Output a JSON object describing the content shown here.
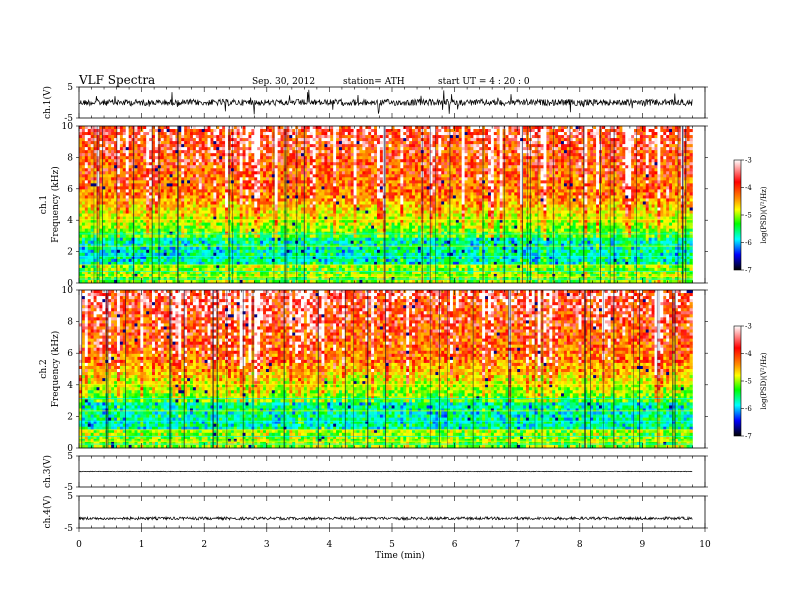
{
  "header": {
    "title": "VLF  Spectra",
    "date": "Sep. 30, 2012",
    "station": "station= ATH",
    "start": "start  UT  =   4  : 20 : 0"
  },
  "colorbar": {
    "label": "log(PSD)(V²/Hz)",
    "ticks": [
      "-3",
      "-4",
      "-5",
      "-6",
      "-7"
    ],
    "colors": [
      "#ffffff",
      "#ff0000",
      "#ff8c00",
      "#ffff00",
      "#00ff00",
      "#00ffff",
      "#0000ff",
      "#000000"
    ]
  },
  "chart_data": [
    {
      "type": "line",
      "panel": "ch1-waveform",
      "ylabel": "ch.1(V)",
      "yticks": [
        "5",
        "-5"
      ],
      "ylim": [
        -5,
        5
      ],
      "xlim": [
        0,
        10
      ],
      "baseline": 0,
      "noise": "high"
    },
    {
      "type": "heatmap",
      "panel": "ch1-spectrogram",
      "ylabel": "ch.1",
      "ylabel2": "Frequency  (kHz)",
      "yticks": [
        "10",
        "8",
        "6",
        "4",
        "2",
        "0"
      ],
      "ylim": [
        0,
        10
      ],
      "xlim": [
        0,
        9.8
      ],
      "colorscale_range": [
        -7,
        -3
      ]
    },
    {
      "type": "heatmap",
      "panel": "ch2-spectrogram",
      "ylabel": "ch.2",
      "ylabel2": "Frequency  (kHz)",
      "yticks": [
        "10",
        "8",
        "6",
        "4",
        "2",
        "0"
      ],
      "ylim": [
        0,
        10
      ],
      "xlim": [
        0,
        9.8
      ],
      "colorscale_range": [
        -7,
        -3
      ]
    },
    {
      "type": "line",
      "panel": "ch3-waveform",
      "ylabel": "ch.3(V)",
      "yticks": [
        "5",
        "-5"
      ],
      "ylim": [
        -5,
        5
      ],
      "xlim": [
        0,
        10
      ],
      "baseline": 0,
      "noise": "flat"
    },
    {
      "type": "line",
      "panel": "ch4-waveform",
      "ylabel": "ch.4(V)",
      "yticks": [
        "5",
        "-5"
      ],
      "ylim": [
        -5,
        5
      ],
      "xlim": [
        0,
        10
      ],
      "baseline": -2,
      "noise": "low"
    }
  ],
  "xaxis": {
    "label": "Time  (min)",
    "ticks": [
      "0",
      "1",
      "2",
      "3",
      "4",
      "5",
      "6",
      "7",
      "8",
      "9",
      "10"
    ]
  }
}
